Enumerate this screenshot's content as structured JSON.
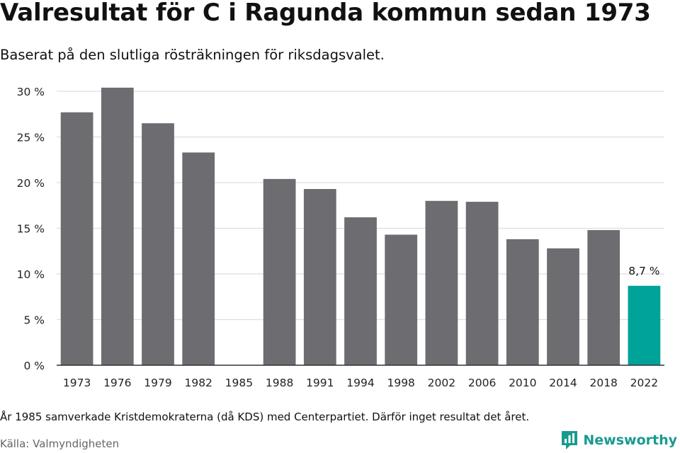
{
  "header": {
    "title": "Valresultat för C i Ragunda kommun sedan 1973",
    "subtitle": "Baserat på den slutliga rösträkningen för riksdagsvalet."
  },
  "footer": {
    "note": "År 1985 samverkade Kristdemokraterna (då KDS) med Centerpartiet. Därför inget resultat det året.",
    "source": "Källa: Valmyndigheten",
    "brand": "Newsworthy"
  },
  "colors": {
    "bar": "#6d6c71",
    "highlight": "#00a398",
    "grid": "#dddddd",
    "brand": "#1a9a8e"
  },
  "chart_data": {
    "type": "bar",
    "categories": [
      "1973",
      "1976",
      "1979",
      "1982",
      "1985",
      "1988",
      "1991",
      "1994",
      "1998",
      "2002",
      "2006",
      "2010",
      "2014",
      "2018",
      "2022"
    ],
    "values": [
      27.7,
      30.4,
      26.5,
      23.3,
      null,
      20.4,
      19.3,
      16.2,
      14.3,
      18.0,
      17.9,
      13.8,
      12.8,
      14.8,
      8.7
    ],
    "ylim": [
      0,
      30
    ],
    "yticks": [
      0,
      5,
      10,
      15,
      20,
      25,
      30
    ],
    "ytick_labels": [
      "0 %",
      "5 %",
      "10 %",
      "15 %",
      "20 %",
      "25 %",
      "30 %"
    ],
    "highlight_category": "2022",
    "data_labels": [
      {
        "category": "2022",
        "text": "8,7 %"
      }
    ],
    "grid": true,
    "legend": "none"
  }
}
